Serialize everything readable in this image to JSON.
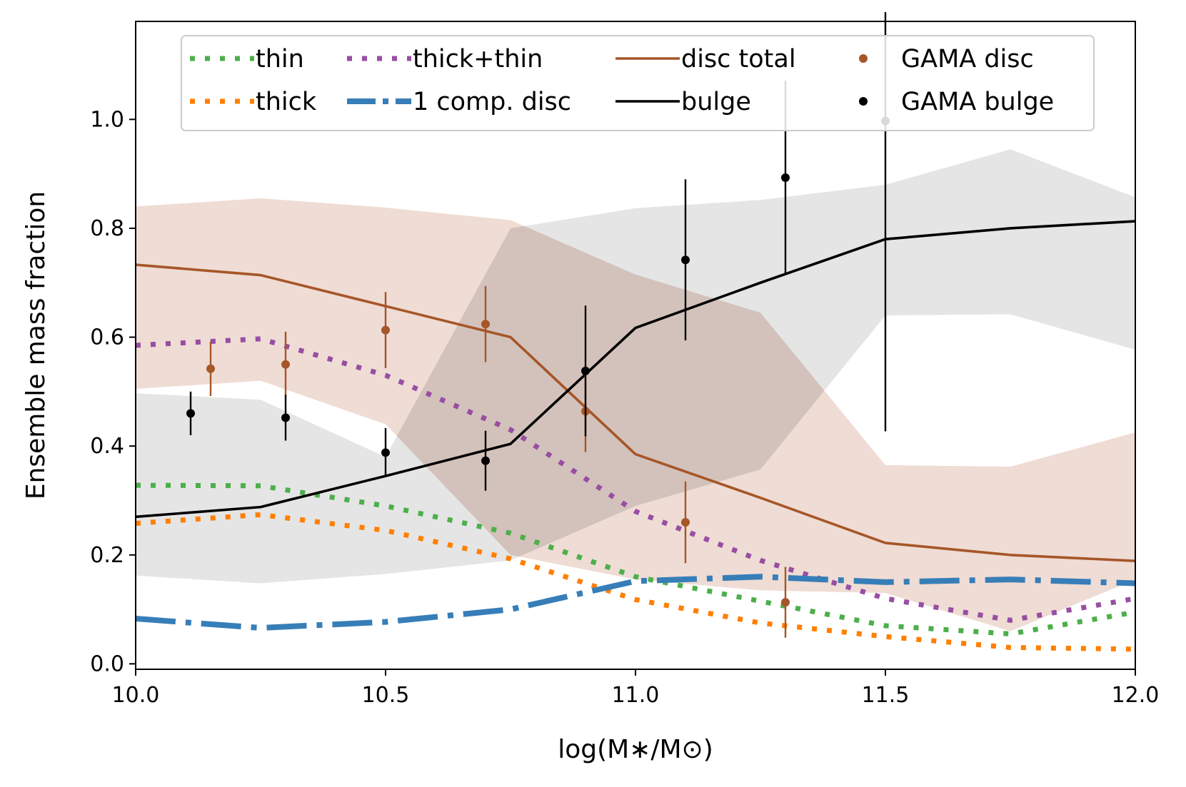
{
  "chart_data": {
    "type": "line",
    "title": "",
    "xlabel": "log(M∗/M⊙)",
    "ylabel": "Ensemble mass fraction",
    "xlim": [
      10.0,
      12.0
    ],
    "ylim": [
      -0.01,
      1.18
    ],
    "x_ticks": [
      10.0,
      10.5,
      11.0,
      11.5,
      12.0
    ],
    "x_tick_labels": [
      "10.0",
      "10.5",
      "11.0",
      "11.5",
      "12.0"
    ],
    "y_ticks": [
      0.0,
      0.2,
      0.4,
      0.6,
      0.8,
      1.0
    ],
    "y_tick_labels": [
      "0.0",
      "0.2",
      "0.4",
      "0.6",
      "0.8",
      "1.0"
    ],
    "grid": false,
    "legend_position": "top",
    "colors": {
      "thin": "#4daf4a",
      "thick": "#ff7f00",
      "thick_thin": "#984ea3",
      "one_comp": "#377eb8",
      "disc": "#a65628",
      "bulge": "#000000",
      "disc_band": "#efdcd4",
      "bulge_band": "#e5e5e5",
      "overlap_band": "#d3c2bb"
    },
    "series": [
      {
        "id": "thin",
        "name": "thin",
        "style": "dotted",
        "x": [
          10.0,
          10.25,
          10.5,
          10.75,
          11.0,
          11.25,
          11.5,
          11.75,
          12.0
        ],
        "values": [
          0.328,
          0.327,
          0.29,
          0.24,
          0.16,
          0.115,
          0.07,
          0.055,
          0.095
        ]
      },
      {
        "id": "thick",
        "name": "thick",
        "style": "dotted",
        "x": [
          10.0,
          10.25,
          10.5,
          10.75,
          11.0,
          11.25,
          11.5,
          11.75,
          12.0
        ],
        "values": [
          0.258,
          0.274,
          0.245,
          0.193,
          0.118,
          0.075,
          0.05,
          0.03,
          0.027
        ]
      },
      {
        "id": "thick_thin",
        "name": "thick+thin",
        "style": "dotted",
        "x": [
          10.0,
          10.25,
          10.5,
          10.75,
          11.0,
          11.25,
          11.5,
          11.75,
          12.0
        ],
        "values": [
          0.585,
          0.597,
          0.53,
          0.43,
          0.28,
          0.19,
          0.12,
          0.08,
          0.12
        ]
      },
      {
        "id": "one_comp",
        "name": "1 comp. disc",
        "style": "dashdot",
        "x": [
          10.0,
          10.25,
          10.5,
          10.75,
          11.0,
          11.25,
          11.5,
          11.75,
          12.0
        ],
        "values": [
          0.083,
          0.066,
          0.077,
          0.1,
          0.152,
          0.16,
          0.15,
          0.155,
          0.148
        ]
      },
      {
        "id": "disc",
        "name": "disc total",
        "style": "solid",
        "x": [
          10.0,
          10.25,
          10.5,
          10.75,
          11.0,
          11.25,
          11.5,
          11.75,
          12.0
        ],
        "values": [
          0.733,
          0.714,
          0.657,
          0.6,
          0.385,
          0.305,
          0.222,
          0.2,
          0.189
        ]
      },
      {
        "id": "bulge",
        "name": "bulge",
        "style": "solid",
        "x": [
          10.0,
          10.25,
          10.5,
          10.75,
          11.0,
          11.25,
          11.5,
          11.75,
          12.0
        ],
        "values": [
          0.27,
          0.288,
          0.345,
          0.404,
          0.617,
          0.7,
          0.78,
          0.8,
          0.813
        ]
      }
    ],
    "bands": [
      {
        "id": "disc_band",
        "of": "disc total",
        "x": [
          10.0,
          10.25,
          10.5,
          10.75,
          11.0,
          11.25,
          11.5,
          11.75,
          12.0
        ],
        "upper": [
          0.84,
          0.855,
          0.838,
          0.815,
          0.715,
          0.645,
          0.365,
          0.362,
          0.425
        ],
        "lower": [
          0.505,
          0.52,
          0.44,
          0.2,
          0.155,
          0.135,
          0.13,
          0.06,
          0.155
        ]
      },
      {
        "id": "bulge_band",
        "of": "bulge",
        "x": [
          10.0,
          10.25,
          10.5,
          10.75,
          11.0,
          11.25,
          11.5,
          11.75,
          12.0
        ],
        "upper": [
          0.497,
          0.485,
          0.38,
          0.8,
          0.837,
          0.852,
          0.88,
          0.945,
          0.857
        ],
        "lower": [
          0.162,
          0.148,
          0.165,
          0.19,
          0.29,
          0.357,
          0.64,
          0.642,
          0.577
        ]
      }
    ],
    "gama_disc": {
      "name": "GAMA disc",
      "x": [
        10.15,
        10.3,
        10.5,
        10.7,
        10.9,
        11.1,
        11.3
      ],
      "y": [
        0.542,
        0.55,
        0.613,
        0.624,
        0.464,
        0.26,
        0.113
      ],
      "err_low": [
        0.05,
        0.06,
        0.07,
        0.07,
        0.075,
        0.075,
        0.065
      ],
      "err_high": [
        0.05,
        0.06,
        0.07,
        0.07,
        0.075,
        0.075,
        0.065
      ]
    },
    "gama_bulge": {
      "name": "GAMA bulge",
      "x": [
        10.11,
        10.3,
        10.5,
        10.7,
        10.9,
        11.1,
        11.3,
        11.5
      ],
      "y": [
        0.46,
        0.452,
        0.388,
        0.373,
        0.538,
        0.742,
        0.893,
        0.997
      ],
      "err_low": [
        0.04,
        0.042,
        0.045,
        0.055,
        0.12,
        0.148,
        0.178,
        0.57
      ],
      "err_high": [
        0.04,
        0.042,
        0.045,
        0.055,
        0.12,
        0.148,
        0.178,
        0.2
      ]
    }
  },
  "legend": {
    "entries": [
      {
        "id": "thin",
        "label": "thin"
      },
      {
        "id": "thick_thin",
        "label": "thick+thin"
      },
      {
        "id": "disc",
        "label": "disc total"
      },
      {
        "id": "gama_disc",
        "label": "GAMA disc"
      },
      {
        "id": "thick",
        "label": "thick"
      },
      {
        "id": "one_comp",
        "label": "1 comp. disc"
      },
      {
        "id": "bulge",
        "label": "bulge"
      },
      {
        "id": "gama_bulge",
        "label": "GAMA bulge"
      }
    ]
  }
}
